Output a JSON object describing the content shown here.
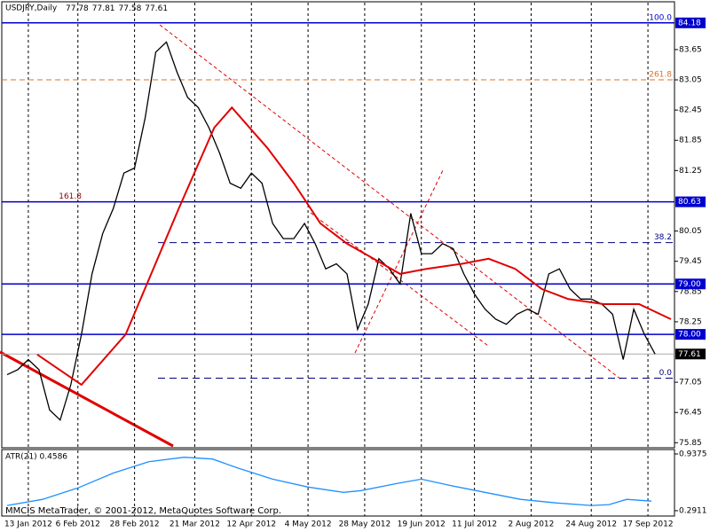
{
  "chart_data": [
    {
      "type": "line",
      "title": "USDJPY,Daily",
      "quote": [
        77.78,
        77.81,
        77.58,
        77.61
      ],
      "xlim": [
        -1.5,
        188.5
      ],
      "ylim": [
        75.75,
        84.37
      ],
      "xticks": [
        {
          "value": 6,
          "label": "13 Jan 2012"
        },
        {
          "value": 20,
          "label": "6 Feb 2012"
        },
        {
          "value": 36,
          "label": "28 Feb 2012"
        },
        {
          "value": 53,
          "label": "21 Mar 2012"
        },
        {
          "value": 69,
          "label": "12 Apr 2012"
        },
        {
          "value": 85,
          "label": "4 May 2012"
        },
        {
          "value": 101,
          "label": "28 May 2012"
        },
        {
          "value": 117,
          "label": "19 Jun 2012"
        },
        {
          "value": 132,
          "label": "11 Jul 2012"
        },
        {
          "value": 148,
          "label": "2 Aug 2012"
        },
        {
          "value": 165,
          "label": "24 Aug 2012"
        },
        {
          "value": 181,
          "label": "17 Sep 2012"
        }
      ],
      "yticks": [
        83.65,
        83.05,
        82.45,
        81.85,
        81.25,
        80.05,
        79.45,
        78.85,
        78.25,
        77.05,
        76.45,
        75.85
      ],
      "levels": [
        {
          "value": 84.18,
          "label": "84.18"
        },
        {
          "value": 80.63,
          "label": "80.63"
        },
        {
          "value": 79,
          "label": "79.00"
        },
        {
          "value": 78,
          "label": "78.00"
        }
      ],
      "last_price": 77.61,
      "fibo": [
        {
          "value": 84.18,
          "label": "100.0"
        },
        {
          "value": 83.05,
          "label": "261.8"
        },
        {
          "value": 80.63,
          "label": "161.8"
        },
        {
          "value": 79.82,
          "label": "38.2"
        },
        {
          "value": 77.13,
          "label": "0.0"
        }
      ],
      "series": [
        {
          "name": "Close",
          "color": "#000000",
          "x": [
            0,
            3,
            6,
            9,
            12,
            15,
            18,
            21,
            24,
            27,
            30,
            33,
            36,
            39,
            42,
            45,
            48,
            51,
            54,
            57,
            60,
            63,
            66,
            69,
            72,
            75,
            78,
            81,
            84,
            87,
            90,
            93,
            96,
            99,
            102,
            105,
            108,
            111,
            114,
            117,
            120,
            123,
            126,
            129,
            132,
            135,
            138,
            141,
            144,
            147,
            150,
            153,
            156,
            159,
            162,
            165,
            168,
            171,
            174,
            177,
            180,
            183
          ],
          "values": [
            77.2,
            77.3,
            77.5,
            77.3,
            76.5,
            76.3,
            77.0,
            78.0,
            79.2,
            80.0,
            80.5,
            81.2,
            81.3,
            82.3,
            83.6,
            83.8,
            83.2,
            82.7,
            82.5,
            82.1,
            81.6,
            81.0,
            80.9,
            81.2,
            81.0,
            80.2,
            79.9,
            79.9,
            80.2,
            79.8,
            79.3,
            79.4,
            79.2,
            78.1,
            78.6,
            79.5,
            79.3,
            79.0,
            80.4,
            79.6,
            79.6,
            79.8,
            79.7,
            79.2,
            78.8,
            78.5,
            78.3,
            78.2,
            78.4,
            78.5,
            78.4,
            79.2,
            79.3,
            78.9,
            78.7,
            78.7,
            78.6,
            78.4,
            77.5,
            78.5,
            78.0,
            77.61
          ]
        },
        {
          "name": "MA",
          "color": "#e00000",
          "x": [
            8.5,
            21,
            33.5,
            48.5,
            58.5,
            63.5,
            73.5,
            81,
            88.5,
            96,
            103.5,
            111,
            118.5,
            128.5,
            136,
            143.5,
            151,
            158.5,
            168.5,
            178.5,
            187.5
          ],
          "values": [
            77.6,
            77.0,
            78.0,
            80.5,
            82.1,
            82.5,
            81.7,
            81.0,
            80.2,
            79.8,
            79.5,
            79.2,
            79.3,
            79.4,
            79.5,
            79.3,
            78.9,
            78.7,
            78.6,
            78.6,
            78.3
          ]
        }
      ]
    },
    {
      "type": "line",
      "title": "ATR(21) 0.4586",
      "ylim": [
        0.23,
        0.988
      ],
      "yticks": [
        0.9375,
        0.2911
      ],
      "series": [
        {
          "name": "ATR",
          "color": "#1e90ff",
          "x": [
            0,
            10,
            20,
            30,
            40,
            50,
            58,
            65,
            75,
            85,
            95,
            100,
            110,
            117,
            125,
            135,
            145,
            155,
            165,
            170,
            175,
            182
          ],
          "values": [
            0.35,
            0.42,
            0.55,
            0.72,
            0.85,
            0.9,
            0.88,
            0.78,
            0.65,
            0.56,
            0.5,
            0.52,
            0.6,
            0.65,
            0.58,
            0.5,
            0.42,
            0.38,
            0.35,
            0.36,
            0.42,
            0.4
          ]
        }
      ],
      "footer": "MMCIS MetaTrader, © 2001-2012, MetaQuotes Software Corp."
    }
  ]
}
